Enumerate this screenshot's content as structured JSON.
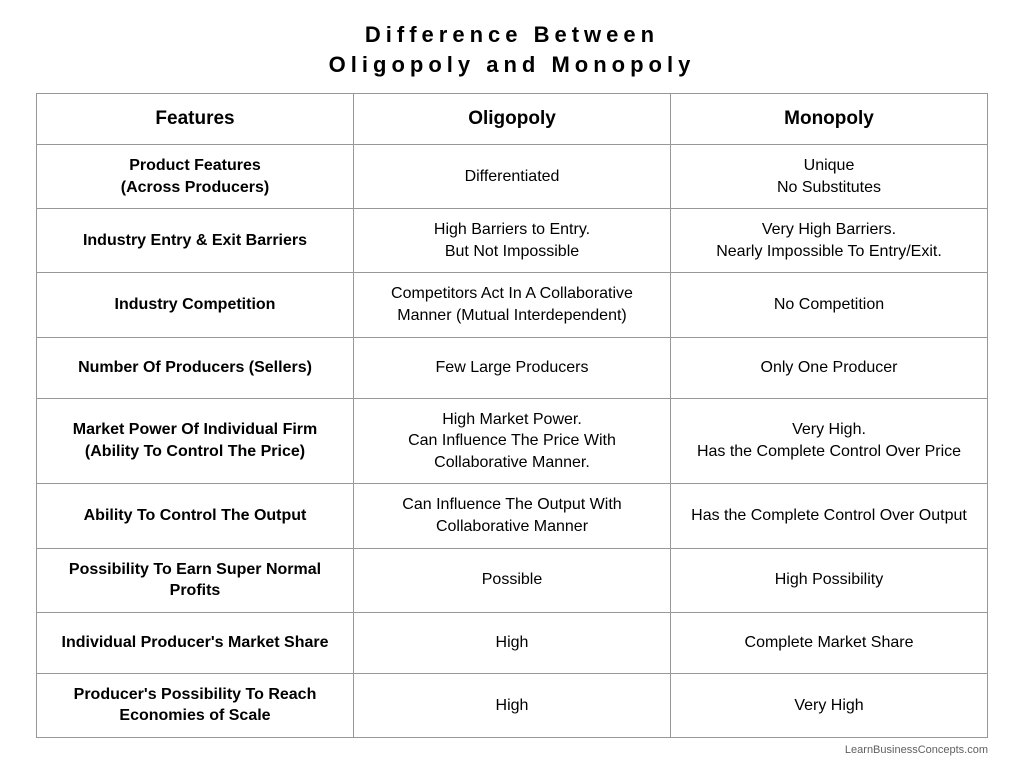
{
  "page": {
    "title_line1": "Difference Between",
    "title_line2": "Oligopoly and Monopoly",
    "attribution": "LearnBusinessConcepts.com"
  },
  "table": {
    "type": "table",
    "border_color": "#989898",
    "background_color": "#ffffff",
    "text_color": "#000000",
    "header_fontsize": 19,
    "feature_fontsize": 16,
    "cell_fontsize": 16,
    "title_fontsize": 22,
    "title_letter_spacing": 5,
    "column_widths_pct": [
      33.3,
      33.3,
      33.3
    ],
    "columns": [
      "Features",
      "Oligopoly",
      "Monopoly"
    ],
    "rows": [
      {
        "feature": "Product Features\n(Across Producers)",
        "oligopoly": "Differentiated",
        "monopoly": "Unique\nNo Substitutes"
      },
      {
        "feature": "Industry Entry & Exit Barriers",
        "oligopoly": "High Barriers to Entry.\nBut Not Impossible",
        "monopoly": "Very High Barriers.\nNearly Impossible To Entry/Exit."
      },
      {
        "feature": "Industry Competition",
        "oligopoly": "Competitors Act In A Collaborative Manner (Mutual Interdependent)",
        "monopoly": "No Competition"
      },
      {
        "feature": "Number Of Producers (Sellers)",
        "oligopoly": "Few Large Producers",
        "monopoly": "Only One Producer"
      },
      {
        "feature": "Market Power Of Individual Firm\n(Ability To Control The Price)",
        "oligopoly": "High Market Power.\nCan Influence The Price With Collaborative Manner.",
        "monopoly": "Very High.\nHas the Complete Control Over Price"
      },
      {
        "feature": "Ability To Control The Output",
        "oligopoly": "Can Influence The Output With Collaborative Manner",
        "monopoly": "Has the Complete Control Over Output"
      },
      {
        "feature": "Possibility To Earn Super Normal Profits",
        "oligopoly": "Possible",
        "monopoly": "High Possibility"
      },
      {
        "feature": "Individual Producer's Market Share",
        "oligopoly": "High",
        "monopoly": "Complete Market Share"
      },
      {
        "feature": "Producer's Possibility To Reach Economies of Scale",
        "oligopoly": "High",
        "monopoly": "Very High"
      }
    ]
  }
}
